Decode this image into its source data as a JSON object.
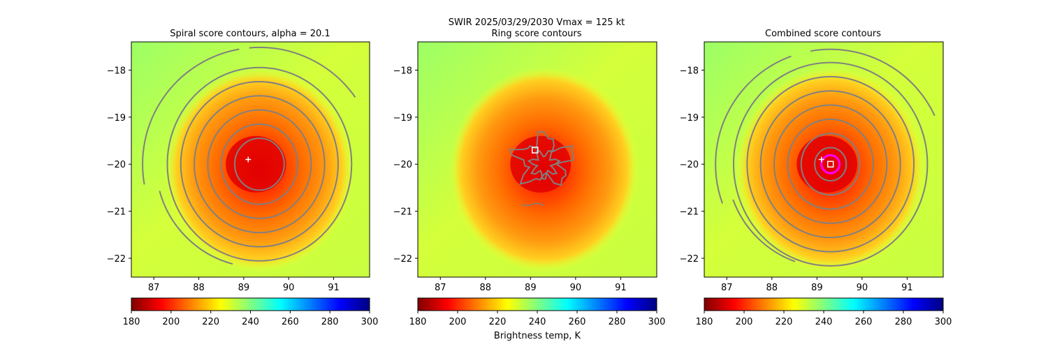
{
  "suptitle_line1": "SWIR  2025/03/29/2030    Vmax = 125 kt",
  "chart_data": [
    {
      "type": "heatmap",
      "title": "Spiral score contours, alpha = 20.1",
      "xlim": [
        86.5,
        91.8
      ],
      "ylim": [
        -22.4,
        -17.4
      ],
      "xticks": [
        "87",
        "88",
        "89",
        "90",
        "91"
      ],
      "yticks": [
        "−18",
        "−19",
        "−20",
        "−21",
        "−22"
      ],
      "storm_center": [
        89.35,
        -20.0
      ],
      "cloud_radius_deg": 2.1,
      "contour_style": "spiral",
      "contour_radii_deg": [
        0.55,
        0.85,
        1.15,
        1.45,
        1.75,
        2.05
      ],
      "outer_arcs": [
        {
          "r": 2.6,
          "from_deg": 100,
          "to_deg": 190
        },
        {
          "r": 2.6,
          "from_deg": 35,
          "to_deg": 95
        },
        {
          "r": 2.3,
          "from_deg": 195,
          "to_deg": 255
        }
      ],
      "markers": [
        {
          "kind": "plus",
          "x": 89.1,
          "y": -19.9,
          "color": "#ffffff"
        }
      ]
    },
    {
      "type": "heatmap",
      "title": "Ring score contours",
      "xlim": [
        86.5,
        91.8
      ],
      "ylim": [
        -22.4,
        -17.4
      ],
      "xticks": [
        "87",
        "88",
        "89",
        "90",
        "91"
      ],
      "yticks": [
        "−18",
        "−19",
        "−20",
        "−21",
        "−22"
      ],
      "storm_center": [
        89.3,
        -20.0
      ],
      "cloud_radius_deg": 2.1,
      "contour_style": "ring",
      "markers": [
        {
          "kind": "square",
          "x": 89.1,
          "y": -19.7,
          "color": "#ffffff"
        }
      ]
    },
    {
      "type": "heatmap",
      "title": "Combined score contours",
      "xlim": [
        86.5,
        91.8
      ],
      "ylim": [
        -22.4,
        -17.4
      ],
      "xticks": [
        "87",
        "88",
        "89",
        "90",
        "91"
      ],
      "yticks": [
        "−18",
        "−19",
        "−20",
        "−21",
        "−22"
      ],
      "storm_center": [
        89.3,
        -20.0
      ],
      "cloud_radius_deg": 2.1,
      "contour_style": "spiral",
      "contour_radii_deg": [
        0.35,
        0.65,
        0.95,
        1.25,
        1.55,
        1.85,
        2.15
      ],
      "outer_arcs": [
        {
          "r": 2.55,
          "from_deg": 110,
          "to_deg": 200
        },
        {
          "r": 2.55,
          "from_deg": 25,
          "to_deg": 100
        },
        {
          "r": 2.3,
          "from_deg": 200,
          "to_deg": 250
        }
      ],
      "markers": [
        {
          "kind": "circle",
          "x": 89.3,
          "y": -20.0,
          "r_deg": 0.2,
          "color": "#ff00ff"
        },
        {
          "kind": "square",
          "x": 89.3,
          "y": -20.0,
          "color": "#ffffff"
        },
        {
          "kind": "plus",
          "x": 89.1,
          "y": -19.9,
          "color": "#ffffff"
        }
      ]
    }
  ],
  "colorbar": {
    "min": 180,
    "max": 300,
    "ticks": [
      "180",
      "200",
      "220",
      "240",
      "260",
      "280",
      "300"
    ],
    "label": "Brightness temp, K",
    "colors": [
      "#800000",
      "#ff0000",
      "#ff8000",
      "#ffff00",
      "#80ff80",
      "#00ffff",
      "#0080ff",
      "#0000ff",
      "#000080"
    ]
  }
}
